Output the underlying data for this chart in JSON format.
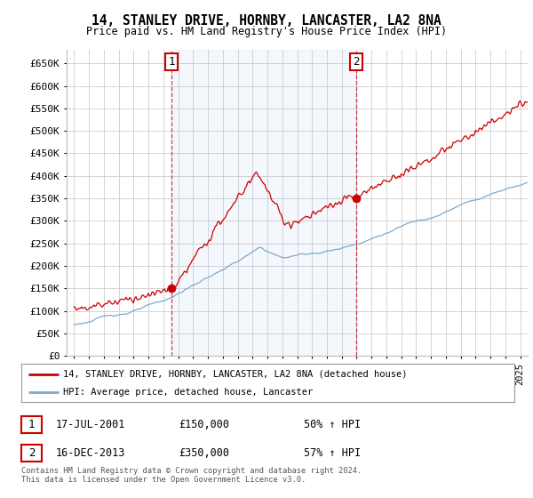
{
  "title": "14, STANLEY DRIVE, HORNBY, LANCASTER, LA2 8NA",
  "subtitle": "Price paid vs. HM Land Registry's House Price Index (HPI)",
  "ylim": [
    0,
    680000
  ],
  "xlim_start": 1994.5,
  "xlim_end": 2025.5,
  "sale1_x": 2001.54,
  "sale1_y": 150000,
  "sale1_label": "1",
  "sale2_x": 2013.96,
  "sale2_y": 350000,
  "sale2_label": "2",
  "legend_line1": "14, STANLEY DRIVE, HORNBY, LANCASTER, LA2 8NA (detached house)",
  "legend_line2": "HPI: Average price, detached house, Lancaster",
  "annotation1": "17-JUL-2001",
  "annotation1_price": "£150,000",
  "annotation1_pct": "50% ↑ HPI",
  "annotation2": "16-DEC-2013",
  "annotation2_price": "£350,000",
  "annotation2_pct": "57% ↑ HPI",
  "footer": "Contains HM Land Registry data © Crown copyright and database right 2024.\nThis data is licensed under the Open Government Licence v3.0.",
  "line_red_color": "#cc0000",
  "line_blue_color": "#7aaad0",
  "fill_blue_color": "#ddeeff",
  "grid_color": "#cccccc",
  "background_color": "#ffffff"
}
